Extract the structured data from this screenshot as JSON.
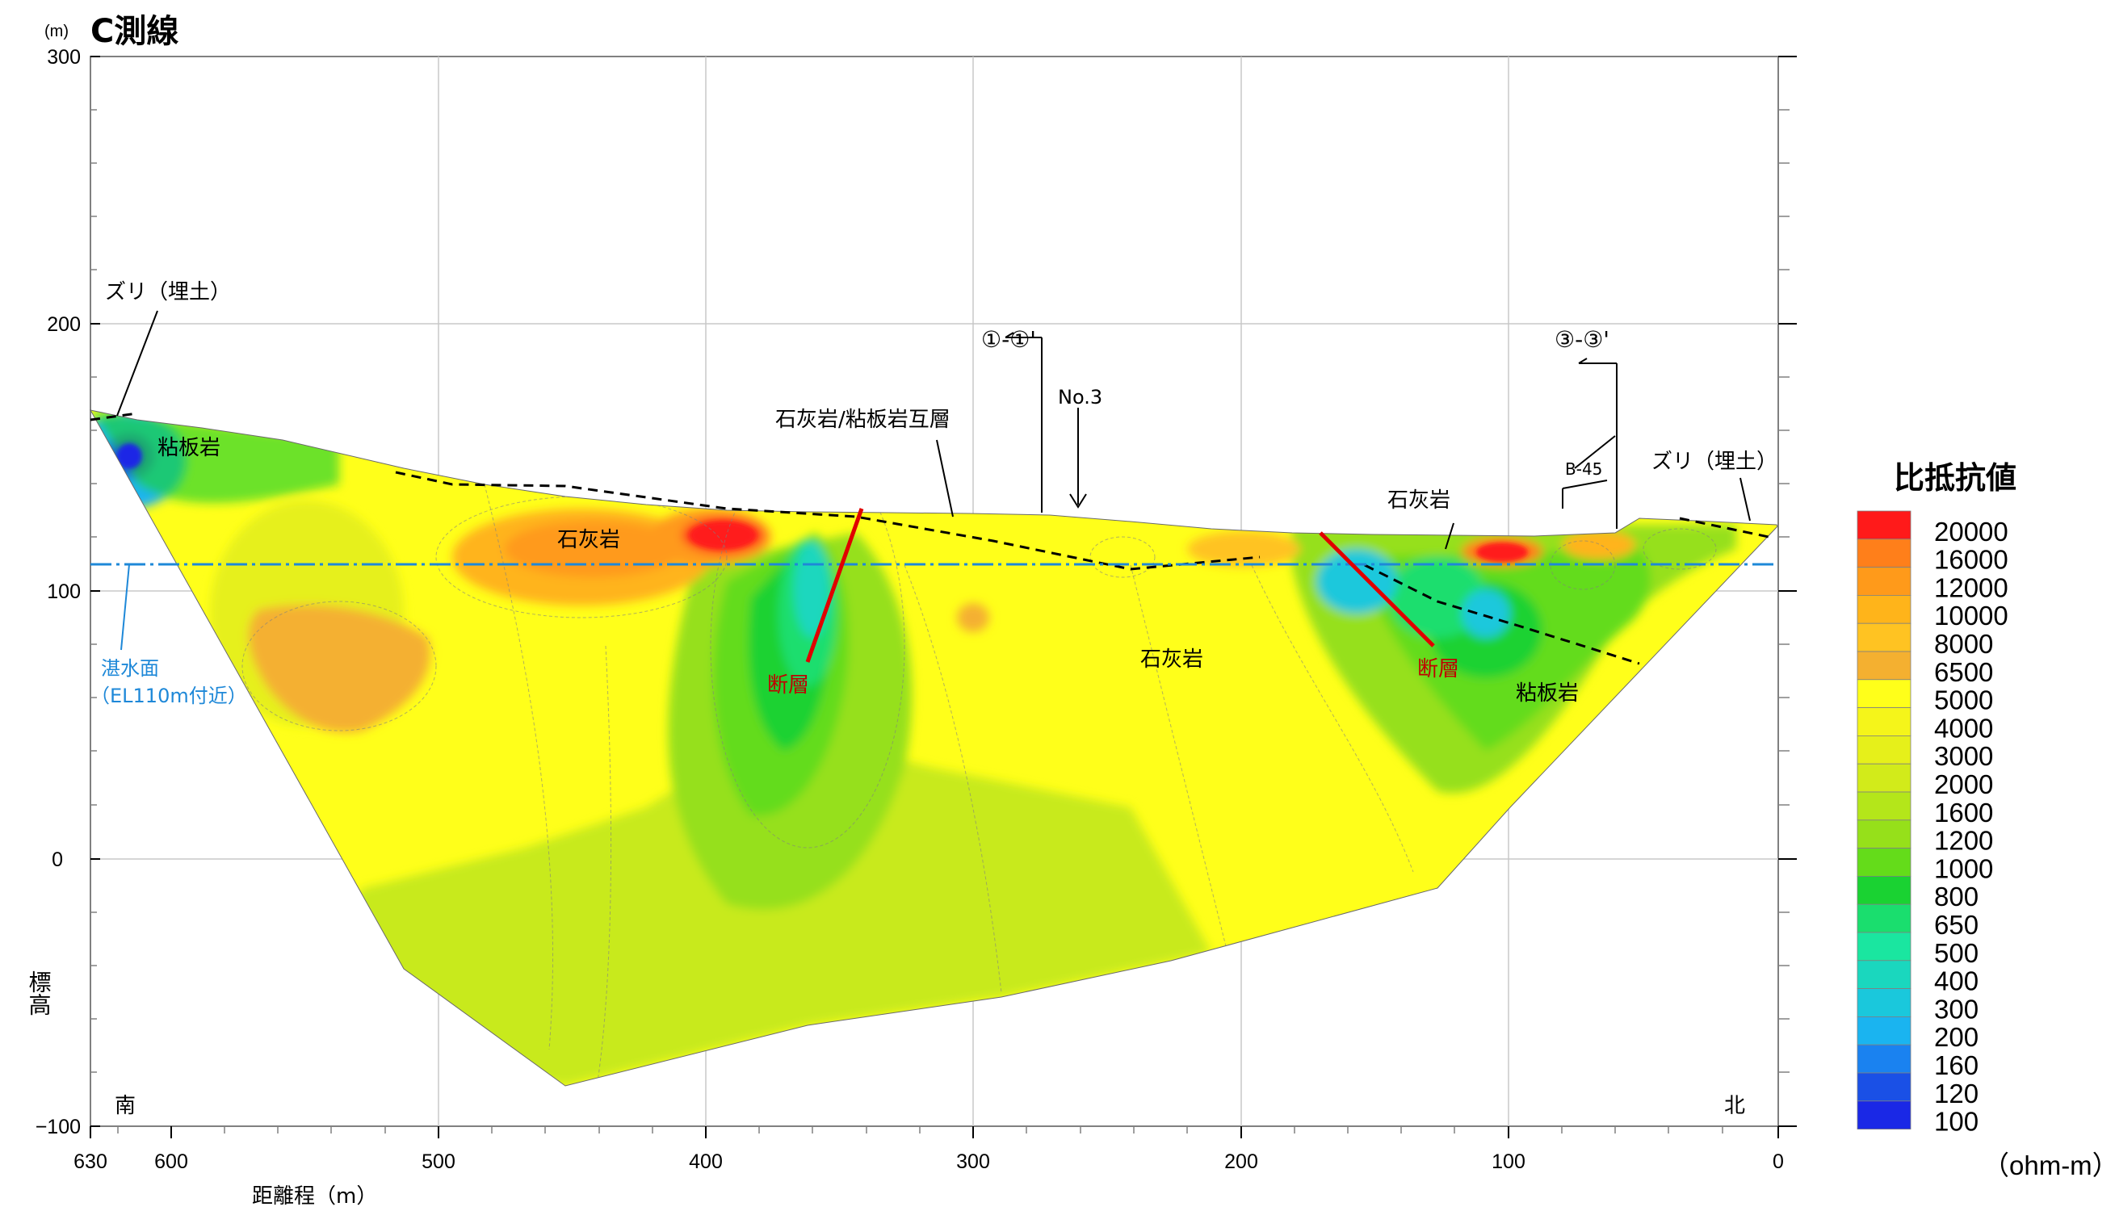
{
  "title": "C測線",
  "y_unit": "(m)",
  "y_axis_label": "標高",
  "x_axis_label": "距離程（m）",
  "x_ticks": [
    "630",
    "600",
    "500",
    "400",
    "300",
    "200",
    "100",
    "0"
  ],
  "y_ticks": [
    "300",
    "200",
    "100",
    "0",
    "−100"
  ],
  "direction_left": "南",
  "direction_right": "北",
  "annotations": {
    "zuri_left": "ズリ（埋土）",
    "zuri_right": "ズリ（埋土）",
    "slate_nw": "粘板岩",
    "limestone_left": "石灰岩",
    "interbed": "石灰岩/粘板岩互層",
    "fault_left": "断層",
    "fault_right": "断層",
    "limestone_mid": "石灰岩",
    "limestone_right": "石灰岩",
    "slate_se": "粘板岩",
    "section_1": "①-①'",
    "section_3": "③-③'",
    "no3": "No.3",
    "b45": "B-45",
    "water_line1": "湛水面",
    "water_line2": "（EL110m付近）"
  },
  "legend": {
    "title": "比抵抗値",
    "unit": "（ohm-m）",
    "items": [
      {
        "label": "20000",
        "color": "#ff1a1a"
      },
      {
        "label": "16000",
        "color": "#ff7f1a"
      },
      {
        "label": "12000",
        "color": "#ff9a1a"
      },
      {
        "label": "10000",
        "color": "#ffb41a"
      },
      {
        "label": "8000",
        "color": "#ffc322"
      },
      {
        "label": "6500",
        "color": "#f4b030"
      },
      {
        "label": "5000",
        "color": "#ffff1a"
      },
      {
        "label": "4000",
        "color": "#f5f51a"
      },
      {
        "label": "3000",
        "color": "#e6f01a"
      },
      {
        "label": "2000",
        "color": "#d2eb1a"
      },
      {
        "label": "1600",
        "color": "#b4e61a"
      },
      {
        "label": "1200",
        "color": "#96e01a"
      },
      {
        "label": "1000",
        "color": "#64dc1a"
      },
      {
        "label": "800",
        "color": "#1ad232"
      },
      {
        "label": "650",
        "color": "#1ade6e"
      },
      {
        "label": "500",
        "color": "#1ae6a0"
      },
      {
        "label": "400",
        "color": "#1ad7be"
      },
      {
        "label": "300",
        "color": "#1ac8dc"
      },
      {
        "label": "200",
        "color": "#1ab4f0"
      },
      {
        "label": "160",
        "color": "#1a82f0"
      },
      {
        "label": "120",
        "color": "#1a50e6"
      },
      {
        "label": "100",
        "color": "#1a28e6"
      }
    ]
  },
  "colors": {
    "limestone": "#f4b030",
    "high": "#ff1a1a",
    "fault": "#e00000",
    "water": "#1e88d8"
  }
}
